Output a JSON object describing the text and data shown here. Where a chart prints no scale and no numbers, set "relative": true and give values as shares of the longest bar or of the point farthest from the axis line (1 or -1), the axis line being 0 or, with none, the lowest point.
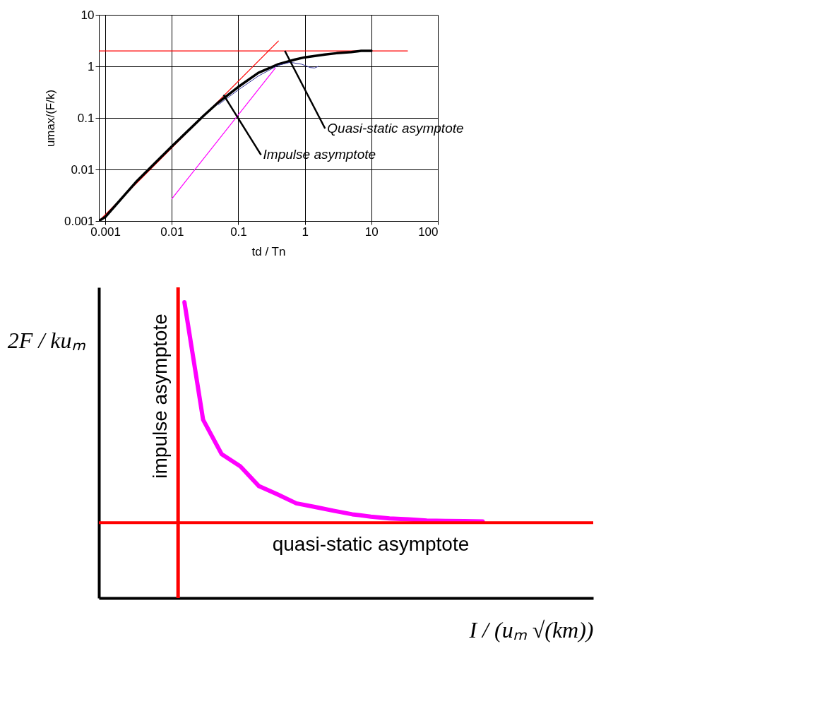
{
  "chart_data": [
    {
      "type": "line",
      "xlabel": "td / Tn",
      "ylabel": "umax/(F/k)",
      "log": "xy",
      "grid": true,
      "xlim": [
        0.0008,
        100
      ],
      "ylim": [
        0.001,
        10
      ],
      "xticks": [
        0.001,
        0.01,
        0.1,
        1,
        10,
        100
      ],
      "yticks": [
        0.001,
        0.01,
        0.1,
        1,
        10
      ],
      "series": [
        {
          "color": "#ff0000",
          "x": [
            0.0008,
            0.4
          ],
          "values": [
            0.001,
            3.1
          ]
        },
        {
          "color": "#ff0000",
          "x": [
            0.0008,
            35
          ],
          "values": [
            2,
            2
          ]
        },
        {
          "color": "#ff00ff",
          "x": [
            0.01,
            0.36
          ],
          "values": [
            0.0027,
            0.93
          ]
        },
        {
          "color": "#000000",
          "x": [
            0.0008,
            0.001,
            0.003,
            0.01,
            0.03,
            0.05,
            0.1,
            0.2,
            0.4,
            0.7,
            1,
            2,
            3,
            5,
            7,
            10
          ],
          "values": [
            0.001,
            0.0012,
            0.006,
            0.028,
            0.11,
            0.2,
            0.4,
            0.75,
            1.1,
            1.35,
            1.5,
            1.7,
            1.8,
            1.9,
            2,
            2
          ]
        },
        {
          "color": "#333399",
          "x": [
            0.05,
            0.1,
            0.2,
            0.4,
            0.6,
            0.9,
            1.2,
            1.4,
            1.6
          ],
          "values": [
            0.18,
            0.35,
            0.65,
            1.05,
            1.2,
            1.1,
            0.95,
            0.93,
            1.0
          ]
        }
      ],
      "annotations": [
        {
          "text": "Quasi-static asymptote",
          "x": 0.5,
          "y": 2
        },
        {
          "text": "Impulse asymptote",
          "x": 0.06,
          "y": 0.28
        }
      ]
    },
    {
      "type": "line",
      "relative": true,
      "xlabel": "I / (uₘ √(km))",
      "ylabel": "2F / kuₘ",
      "categories": [
        null,
        null,
        null,
        null,
        null,
        null,
        null,
        null,
        null,
        null,
        null,
        null,
        null,
        null,
        null,
        null,
        null
      ],
      "series": [
        {
          "color": "#ff00ff",
          "values": [
            1.0,
            0.603,
            0.486,
            0.445,
            0.378,
            0.35,
            0.32,
            0.308,
            0.295,
            0.283,
            0.275,
            0.269,
            0.266,
            0.262,
            0.261,
            0.26,
            0.259
          ]
        }
      ],
      "ref_lines": [
        {
          "axis": "x",
          "value": null,
          "label": "impulse asymptote",
          "color": "#ff0000"
        },
        {
          "axis": "y",
          "value": 0.255,
          "label": "quasi-static asymptote",
          "color": "#ff0000"
        }
      ]
    }
  ]
}
